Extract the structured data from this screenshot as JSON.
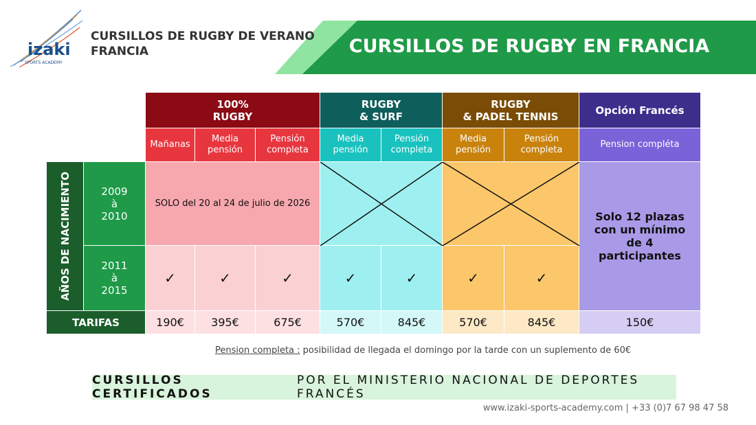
{
  "header": {
    "logo": "izaki",
    "logo_sub": "SPORTS ACADEMY",
    "subtitle_lines": [
      "CURSILLOS DE RUGBY DE VERANO",
      "FRANCIA"
    ],
    "title": "CURSILLOS DE RUGBY EN FRANCIA"
  },
  "table": {
    "groups": [
      {
        "label_lines": [
          "100%",
          "RUGBY"
        ],
        "columns": [
          [
            "Mañanas"
          ],
          [
            "Media",
            "pensión"
          ],
          [
            "Pensión",
            "completa"
          ]
        ]
      },
      {
        "label_lines": [
          "RUGBY",
          "& SURF"
        ],
        "columns": [
          [
            "Media",
            "pensión"
          ],
          [
            "Pensión",
            "completa"
          ]
        ]
      },
      {
        "label_lines": [
          "RUGBY",
          "& PADEL TENNIS"
        ],
        "columns": [
          [
            "Media",
            "pensión"
          ],
          [
            "Pensión",
            "completa"
          ]
        ]
      },
      {
        "label_lines": [
          "Opción Francés"
        ],
        "columns": [
          [
            "Pension compléta"
          ]
        ]
      }
    ],
    "side_label": "AÑOS DE NACIMIENTO",
    "rows": [
      {
        "years": [
          "2009",
          "à",
          "2010"
        ],
        "rugby_note": "SOLO del 20 al 24 de julio de 2026"
      },
      {
        "years": [
          "2011",
          "à",
          "2015"
        ],
        "checks": [
          "✓",
          "✓",
          "✓",
          "✓",
          "✓",
          "✓",
          "✓"
        ]
      }
    ],
    "french_note": "Solo 12 plazas con un mínimo de 4 participantes",
    "tarifas_label": "TARIFAS",
    "prices": [
      "190€",
      "395€",
      "675€",
      "570€",
      "845€",
      "570€",
      "845€",
      "150€"
    ]
  },
  "footnote": {
    "label": "Pension completa :",
    "text": "posibilidad de llegada el domingo por la tarde con un suplemento de 60€"
  },
  "banner": {
    "bold": "CURSILLOS CERTIFICADOS",
    "rest": "POR EL MINISTERIO NACIONAL DE DEPORTES FRANCÉS"
  },
  "contact": "www.izaki-sports-academy.com | +33 (0)7 67 98 47 58"
}
